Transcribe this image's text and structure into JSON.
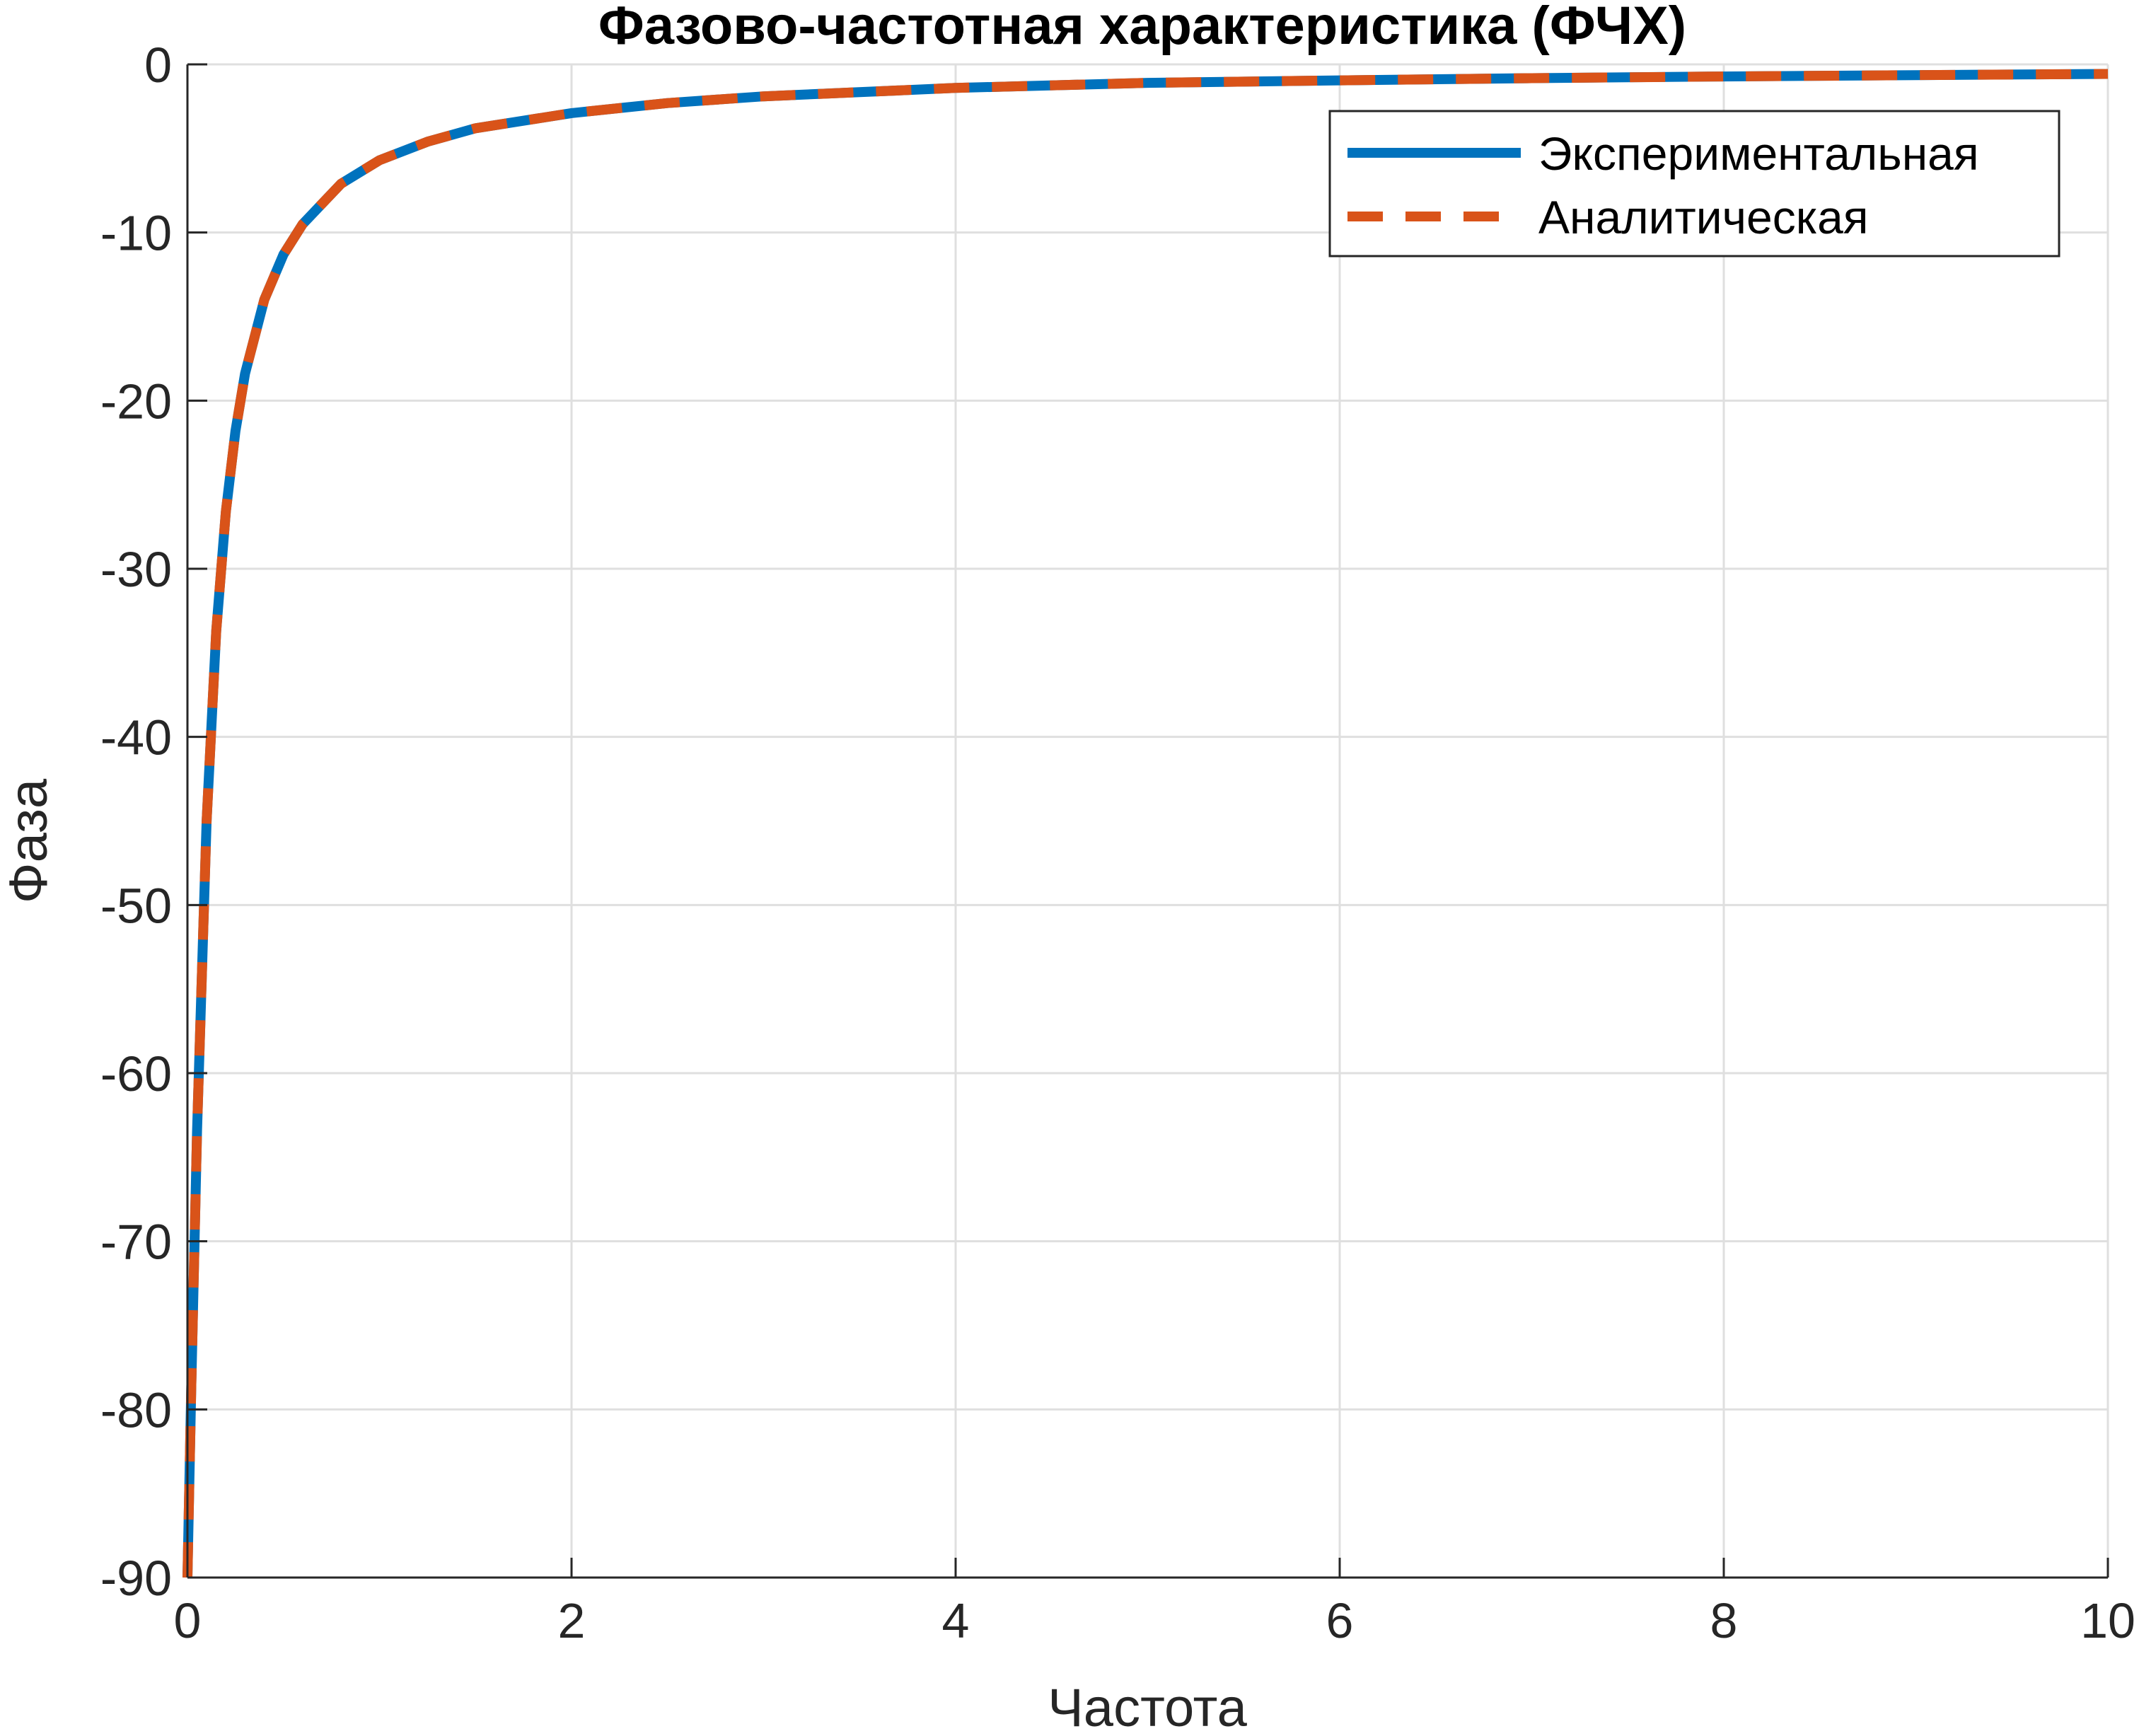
{
  "chart_data": {
    "type": "line",
    "title": "Фазово-частотная характеристика (ФЧХ)",
    "xlabel": "Частота",
    "ylabel": "Фаза",
    "xlim": [
      0,
      10
    ],
    "ylim": [
      -90,
      0
    ],
    "xticks": [
      0,
      2,
      4,
      6,
      8,
      10
    ],
    "yticks": [
      0,
      -10,
      -20,
      -30,
      -40,
      -50,
      -60,
      -70,
      -80,
      -90
    ],
    "x_tick_labels": [
      "0",
      "2",
      "4",
      "6",
      "8",
      "10"
    ],
    "y_tick_labels": [
      "0",
      "-10",
      "-20",
      "-30",
      "-40",
      "-50",
      "-60",
      "-70",
      "-80",
      "-90"
    ],
    "grid": true,
    "legend_position": "top-right",
    "series": [
      {
        "name": "Экспериментальная",
        "color": "#0072BD",
        "style": "solid",
        "x": [
          0,
          0.02,
          0.05,
          0.1,
          0.15,
          0.2,
          0.25,
          0.3,
          0.4,
          0.5,
          0.6,
          0.8,
          1.0,
          1.25,
          1.5,
          2.0,
          2.5,
          3.0,
          4.0,
          5.0,
          6.0,
          7.0,
          8.0,
          9.0,
          10.0
        ],
        "y": [
          -90,
          -78.7,
          -63.4,
          -45.0,
          -33.7,
          -26.6,
          -21.8,
          -18.4,
          -14.0,
          -11.3,
          -9.5,
          -7.1,
          -5.7,
          -4.6,
          -3.8,
          -2.9,
          -2.3,
          -1.9,
          -1.4,
          -1.1,
          -0.95,
          -0.82,
          -0.72,
          -0.64,
          -0.57
        ]
      },
      {
        "name": "Аналитическая",
        "color": "#D95319",
        "style": "dashed",
        "x": [
          0,
          0.02,
          0.05,
          0.1,
          0.15,
          0.2,
          0.25,
          0.3,
          0.4,
          0.5,
          0.6,
          0.8,
          1.0,
          1.25,
          1.5,
          2.0,
          2.5,
          3.0,
          4.0,
          5.0,
          6.0,
          7.0,
          8.0,
          9.0,
          10.0
        ],
        "y": [
          -90,
          -78.7,
          -63.4,
          -45.0,
          -33.7,
          -26.6,
          -21.8,
          -18.4,
          -14.0,
          -11.3,
          -9.5,
          -7.1,
          -5.7,
          -4.6,
          -3.8,
          -2.9,
          -2.3,
          -1.9,
          -1.4,
          -1.1,
          -0.95,
          -0.82,
          -0.72,
          -0.64,
          -0.57
        ]
      }
    ]
  }
}
